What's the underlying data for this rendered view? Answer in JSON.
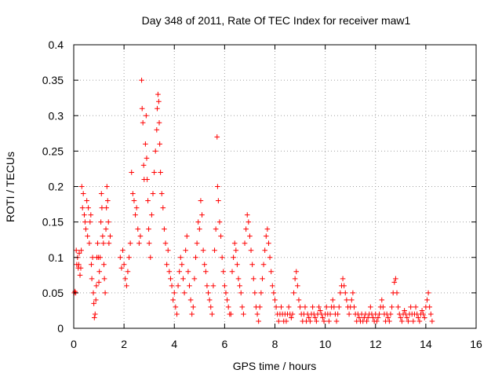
{
  "chart_data": {
    "type": "scatter",
    "title": "Day 348 of 2011, Rate Of TEC Index for receiver maw1",
    "xlabel": "GPS time / hours",
    "ylabel": "ROTI / TECUs",
    "xlim": [
      0,
      16
    ],
    "ylim": [
      0,
      0.4
    ],
    "x_ticks": [
      "0",
      "2",
      "4",
      "6",
      "8",
      "10",
      "12",
      "14",
      "16"
    ],
    "y_ticks": [
      "0",
      "0.05",
      "0.1",
      "0.15",
      "0.2",
      "0.25",
      "0.3",
      "0.35",
      "0.4"
    ],
    "grid": true,
    "marker": "plus",
    "series": [
      {
        "name": "ROTI",
        "color": "#ff0000",
        "points": [
          [
            0.02,
            0.05
          ],
          [
            0.05,
            0.052
          ],
          [
            0.08,
            0.05
          ],
          [
            0.1,
            0.11
          ],
          [
            0.12,
            0.09
          ],
          [
            0.15,
            0.1
          ],
          [
            0.18,
            0.085
          ],
          [
            0.2,
            0.09
          ],
          [
            0.22,
            0.106
          ],
          [
            0.25,
            0.075
          ],
          [
            0.28,
            0.085
          ],
          [
            0.3,
            0.11
          ],
          [
            0.32,
            0.2
          ],
          [
            0.35,
            0.17
          ],
          [
            0.38,
            0.19
          ],
          [
            0.42,
            0.16
          ],
          [
            0.45,
            0.15
          ],
          [
            0.48,
            0.14
          ],
          [
            0.52,
            0.18
          ],
          [
            0.55,
            0.13
          ],
          [
            0.58,
            0.17
          ],
          [
            0.62,
            0.12
          ],
          [
            0.65,
            0.15
          ],
          [
            0.68,
            0.16
          ],
          [
            0.7,
            0.09
          ],
          [
            0.72,
            0.07
          ],
          [
            0.75,
            0.1
          ],
          [
            0.78,
            0.05
          ],
          [
            0.8,
            0.035
          ],
          [
            0.82,
            0.015
          ],
          [
            0.85,
            0.02
          ],
          [
            0.88,
            0.04
          ],
          [
            0.9,
            0.06
          ],
          [
            0.92,
            0.1
          ],
          [
            0.95,
            0.12
          ],
          [
            0.98,
            0.1
          ],
          [
            1.0,
            0.065
          ],
          [
            1.02,
            0.08
          ],
          [
            1.05,
            0.1
          ],
          [
            1.08,
            0.15
          ],
          [
            1.1,
            0.19
          ],
          [
            1.12,
            0.17
          ],
          [
            1.15,
            0.13
          ],
          [
            1.18,
            0.12
          ],
          [
            1.2,
            0.09
          ],
          [
            1.22,
            0.07
          ],
          [
            1.25,
            0.05
          ],
          [
            1.28,
            0.14
          ],
          [
            1.3,
            0.17
          ],
          [
            1.32,
            0.2
          ],
          [
            1.35,
            0.18
          ],
          [
            1.38,
            0.15
          ],
          [
            1.4,
            0.12
          ],
          [
            1.45,
            0.13
          ],
          [
            1.85,
            0.1
          ],
          [
            1.9,
            0.085
          ],
          [
            1.95,
            0.11
          ],
          [
            2.0,
            0.09
          ],
          [
            2.05,
            0.07
          ],
          [
            2.1,
            0.06
          ],
          [
            2.15,
            0.08
          ],
          [
            2.2,
            0.1
          ],
          [
            2.25,
            0.12
          ],
          [
            2.3,
            0.22
          ],
          [
            2.35,
            0.19
          ],
          [
            2.4,
            0.18
          ],
          [
            2.45,
            0.16
          ],
          [
            2.5,
            0.17
          ],
          [
            2.55,
            0.14
          ],
          [
            2.6,
            0.12
          ],
          [
            2.65,
            0.13
          ],
          [
            2.7,
            0.35
          ],
          [
            2.72,
            0.31
          ],
          [
            2.75,
            0.29
          ],
          [
            2.78,
            0.23
          ],
          [
            2.8,
            0.21
          ],
          [
            2.85,
            0.26
          ],
          [
            2.88,
            0.3
          ],
          [
            2.9,
            0.24
          ],
          [
            2.92,
            0.21
          ],
          [
            2.95,
            0.18
          ],
          [
            2.98,
            0.14
          ],
          [
            3.0,
            0.12
          ],
          [
            3.05,
            0.1
          ],
          [
            3.1,
            0.16
          ],
          [
            3.15,
            0.19
          ],
          [
            3.2,
            0.22
          ],
          [
            3.25,
            0.25
          ],
          [
            3.3,
            0.28
          ],
          [
            3.32,
            0.31
          ],
          [
            3.35,
            0.33
          ],
          [
            3.38,
            0.32
          ],
          [
            3.4,
            0.29
          ],
          [
            3.42,
            0.26
          ],
          [
            3.45,
            0.22
          ],
          [
            3.5,
            0.19
          ],
          [
            3.55,
            0.17
          ],
          [
            3.6,
            0.14
          ],
          [
            3.65,
            0.12
          ],
          [
            3.7,
            0.09
          ],
          [
            3.75,
            0.11
          ],
          [
            3.8,
            0.08
          ],
          [
            3.85,
            0.07
          ],
          [
            3.9,
            0.06
          ],
          [
            3.95,
            0.04
          ],
          [
            4.0,
            0.05
          ],
          [
            4.05,
            0.03
          ],
          [
            4.1,
            0.02
          ],
          [
            4.15,
            0.06
          ],
          [
            4.2,
            0.08
          ],
          [
            4.25,
            0.1
          ],
          [
            4.3,
            0.09
          ],
          [
            4.35,
            0.07
          ],
          [
            4.4,
            0.05
          ],
          [
            4.45,
            0.11
          ],
          [
            4.5,
            0.13
          ],
          [
            4.55,
            0.08
          ],
          [
            4.6,
            0.06
          ],
          [
            4.65,
            0.04
          ],
          [
            4.7,
            0.02
          ],
          [
            4.75,
            0.03
          ],
          [
            4.8,
            0.07
          ],
          [
            4.85,
            0.1
          ],
          [
            4.9,
            0.12
          ],
          [
            4.95,
            0.15
          ],
          [
            5.0,
            0.14
          ],
          [
            5.05,
            0.18
          ],
          [
            5.1,
            0.16
          ],
          [
            5.15,
            0.11
          ],
          [
            5.2,
            0.09
          ],
          [
            5.25,
            0.08
          ],
          [
            5.3,
            0.06
          ],
          [
            5.35,
            0.05
          ],
          [
            5.4,
            0.04
          ],
          [
            5.45,
            0.03
          ],
          [
            5.5,
            0.02
          ],
          [
            5.55,
            0.06
          ],
          [
            5.6,
            0.11
          ],
          [
            5.65,
            0.14
          ],
          [
            5.7,
            0.27
          ],
          [
            5.72,
            0.2
          ],
          [
            5.75,
            0.18
          ],
          [
            5.8,
            0.15
          ],
          [
            5.85,
            0.13
          ],
          [
            5.9,
            0.1
          ],
          [
            5.95,
            0.08
          ],
          [
            6.0,
            0.06
          ],
          [
            6.05,
            0.05
          ],
          [
            6.1,
            0.04
          ],
          [
            6.15,
            0.03
          ],
          [
            6.2,
            0.02
          ],
          [
            6.25,
            0.02
          ],
          [
            6.3,
            0.08
          ],
          [
            6.35,
            0.1
          ],
          [
            6.4,
            0.12
          ],
          [
            6.45,
            0.11
          ],
          [
            6.5,
            0.09
          ],
          [
            6.55,
            0.07
          ],
          [
            6.6,
            0.06
          ],
          [
            6.65,
            0.05
          ],
          [
            6.7,
            0.03
          ],
          [
            6.75,
            0.02
          ],
          [
            6.8,
            0.12
          ],
          [
            6.85,
            0.14
          ],
          [
            6.9,
            0.16
          ],
          [
            6.95,
            0.15
          ],
          [
            7.0,
            0.13
          ],
          [
            7.05,
            0.11
          ],
          [
            7.1,
            0.09
          ],
          [
            7.15,
            0.07
          ],
          [
            7.2,
            0.05
          ],
          [
            7.25,
            0.03
          ],
          [
            7.3,
            0.02
          ],
          [
            7.35,
            0.01
          ],
          [
            7.4,
            0.03
          ],
          [
            7.45,
            0.05
          ],
          [
            7.5,
            0.07
          ],
          [
            7.55,
            0.09
          ],
          [
            7.6,
            0.11
          ],
          [
            7.65,
            0.13
          ],
          [
            7.7,
            0.14
          ],
          [
            7.75,
            0.12
          ],
          [
            7.8,
            0.1
          ],
          [
            7.85,
            0.08
          ],
          [
            7.9,
            0.06
          ],
          [
            7.95,
            0.05
          ],
          [
            8.0,
            0.04
          ],
          [
            8.05,
            0.03
          ],
          [
            8.1,
            0.02
          ],
          [
            8.15,
            0.01
          ],
          [
            8.2,
            0.02
          ],
          [
            8.25,
            0.03
          ],
          [
            8.3,
            0.02
          ],
          [
            8.35,
            0.01
          ],
          [
            8.4,
            0.02
          ],
          [
            8.45,
            0.01
          ],
          [
            8.5,
            0.02
          ],
          [
            8.55,
            0.03
          ],
          [
            8.6,
            0.02
          ],
          [
            8.65,
            0.015
          ],
          [
            8.7,
            0.02
          ],
          [
            8.75,
            0.05
          ],
          [
            8.8,
            0.07
          ],
          [
            8.85,
            0.08
          ],
          [
            8.9,
            0.06
          ],
          [
            8.95,
            0.04
          ],
          [
            9.0,
            0.03
          ],
          [
            9.05,
            0.02
          ],
          [
            9.1,
            0.01
          ],
          [
            9.15,
            0.02
          ],
          [
            9.2,
            0.03
          ],
          [
            9.25,
            0.01
          ],
          [
            9.3,
            0.02
          ],
          [
            9.35,
            0.015
          ],
          [
            9.4,
            0.01
          ],
          [
            9.45,
            0.02
          ],
          [
            9.5,
            0.03
          ],
          [
            9.55,
            0.02
          ],
          [
            9.6,
            0.015
          ],
          [
            9.65,
            0.01
          ],
          [
            9.7,
            0.02
          ],
          [
            9.75,
            0.03
          ],
          [
            9.8,
            0.025
          ],
          [
            9.85,
            0.02
          ],
          [
            9.9,
            0.015
          ],
          [
            9.95,
            0.01
          ],
          [
            10.0,
            0.02
          ],
          [
            10.05,
            0.03
          ],
          [
            10.1,
            0.02
          ],
          [
            10.15,
            0.01
          ],
          [
            10.2,
            0.02
          ],
          [
            10.25,
            0.03
          ],
          [
            10.3,
            0.04
          ],
          [
            10.35,
            0.03
          ],
          [
            10.4,
            0.02
          ],
          [
            10.45,
            0.01
          ],
          [
            10.5,
            0.02
          ],
          [
            10.55,
            0.03
          ],
          [
            10.6,
            0.05
          ],
          [
            10.65,
            0.06
          ],
          [
            10.7,
            0.07
          ],
          [
            10.75,
            0.06
          ],
          [
            10.8,
            0.05
          ],
          [
            10.85,
            0.04
          ],
          [
            10.9,
            0.03
          ],
          [
            10.95,
            0.02
          ],
          [
            11.0,
            0.03
          ],
          [
            11.05,
            0.04
          ],
          [
            11.1,
            0.05
          ],
          [
            11.15,
            0.03
          ],
          [
            11.2,
            0.02
          ],
          [
            11.25,
            0.01
          ],
          [
            11.3,
            0.02
          ],
          [
            11.35,
            0.015
          ],
          [
            11.4,
            0.01
          ],
          [
            11.45,
            0.02
          ],
          [
            11.5,
            0.01
          ],
          [
            11.55,
            0.015
          ],
          [
            11.6,
            0.02
          ],
          [
            11.65,
            0.01
          ],
          [
            11.7,
            0.015
          ],
          [
            11.75,
            0.02
          ],
          [
            11.8,
            0.03
          ],
          [
            11.85,
            0.02
          ],
          [
            11.9,
            0.015
          ],
          [
            11.95,
            0.01
          ],
          [
            12.0,
            0.02
          ],
          [
            12.05,
            0.01
          ],
          [
            12.1,
            0.015
          ],
          [
            12.15,
            0.02
          ],
          [
            12.2,
            0.03
          ],
          [
            12.25,
            0.04
          ],
          [
            12.3,
            0.03
          ],
          [
            12.35,
            0.02
          ],
          [
            12.4,
            0.01
          ],
          [
            12.45,
            0.02
          ],
          [
            12.5,
            0.015
          ],
          [
            12.55,
            0.01
          ],
          [
            12.6,
            0.02
          ],
          [
            12.65,
            0.03
          ],
          [
            12.7,
            0.05
          ],
          [
            12.75,
            0.065
          ],
          [
            12.8,
            0.07
          ],
          [
            12.85,
            0.05
          ],
          [
            12.9,
            0.03
          ],
          [
            12.95,
            0.02
          ],
          [
            13.0,
            0.015
          ],
          [
            13.05,
            0.01
          ],
          [
            13.1,
            0.02
          ],
          [
            13.15,
            0.025
          ],
          [
            13.2,
            0.02
          ],
          [
            13.25,
            0.015
          ],
          [
            13.3,
            0.01
          ],
          [
            13.35,
            0.02
          ],
          [
            13.4,
            0.03
          ],
          [
            13.45,
            0.02
          ],
          [
            13.5,
            0.01
          ],
          [
            13.55,
            0.02
          ],
          [
            13.6,
            0.03
          ],
          [
            13.65,
            0.02
          ],
          [
            13.7,
            0.015
          ],
          [
            13.75,
            0.01
          ],
          [
            13.8,
            0.02
          ],
          [
            13.85,
            0.025
          ],
          [
            13.9,
            0.02
          ],
          [
            13.95,
            0.015
          ],
          [
            14.0,
            0.03
          ],
          [
            14.05,
            0.04
          ],
          [
            14.1,
            0.05
          ],
          [
            14.15,
            0.03
          ],
          [
            14.2,
            0.02
          ],
          [
            14.25,
            0.01
          ]
        ]
      }
    ]
  }
}
